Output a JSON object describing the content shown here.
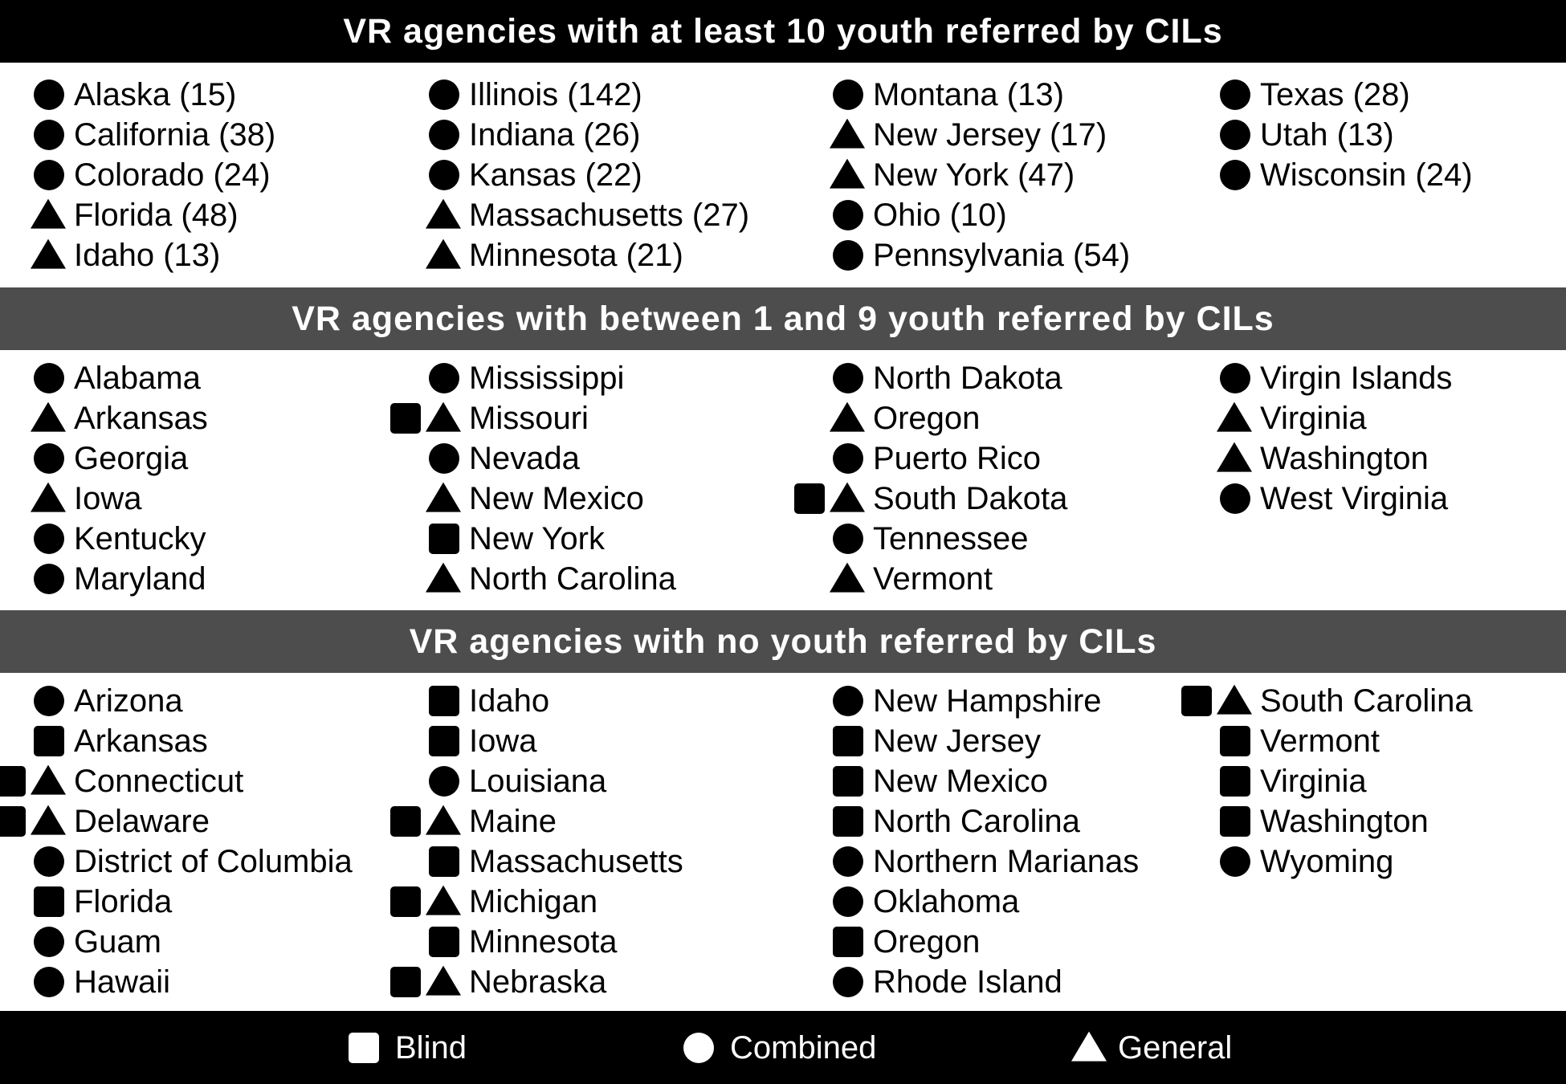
{
  "sections": [
    {
      "title": "VR agencies with at least 10 youth referred by CILs",
      "columns": [
        [
          {
            "label": "Alaska (15)",
            "icons": [
              "circle"
            ]
          },
          {
            "label": "California (38)",
            "icons": [
              "circle"
            ]
          },
          {
            "label": "Colorado (24)",
            "icons": [
              "circle"
            ]
          },
          {
            "label": "Florida (48)",
            "icons": [
              "triangle"
            ]
          },
          {
            "label": "Idaho (13)",
            "icons": [
              "triangle"
            ]
          }
        ],
        [
          {
            "label": "Illinois (142)",
            "icons": [
              "circle"
            ]
          },
          {
            "label": "Indiana (26)",
            "icons": [
              "circle"
            ]
          },
          {
            "label": "Kansas (22)",
            "icons": [
              "circle"
            ]
          },
          {
            "label": "Massachusetts (27)",
            "icons": [
              "triangle"
            ]
          },
          {
            "label": "Minnesota (21)",
            "icons": [
              "triangle"
            ]
          }
        ],
        [
          {
            "label": "Montana (13)",
            "icons": [
              "circle"
            ]
          },
          {
            "label": "New Jersey (17)",
            "icons": [
              "triangle"
            ]
          },
          {
            "label": "New York (47)",
            "icons": [
              "triangle"
            ]
          },
          {
            "label": "Ohio (10)",
            "icons": [
              "circle"
            ]
          },
          {
            "label": "Pennsylvania (54)",
            "icons": [
              "circle"
            ]
          }
        ],
        [
          {
            "label": "Texas (28)",
            "icons": [
              "circle"
            ]
          },
          {
            "label": "Utah (13)",
            "icons": [
              "circle"
            ]
          },
          {
            "label": "Wisconsin (24)",
            "icons": [
              "circle"
            ]
          }
        ]
      ]
    },
    {
      "title": "VR agencies with between 1 and 9 youth referred by CILs",
      "columns": [
        [
          {
            "label": "Alabama",
            "icons": [
              "circle"
            ]
          },
          {
            "label": "Arkansas",
            "icons": [
              "triangle"
            ]
          },
          {
            "label": "Georgia",
            "icons": [
              "circle"
            ]
          },
          {
            "label": "Iowa",
            "icons": [
              "triangle"
            ]
          },
          {
            "label": "Kentucky",
            "icons": [
              "circle"
            ]
          },
          {
            "label": "Maryland",
            "icons": [
              "circle"
            ]
          }
        ],
        [
          {
            "label": "Mississippi",
            "icons": [
              "circle"
            ]
          },
          {
            "label": "Missouri",
            "icons": [
              "square",
              "triangle"
            ]
          },
          {
            "label": "Nevada",
            "icons": [
              "circle"
            ]
          },
          {
            "label": "New Mexico",
            "icons": [
              "triangle"
            ]
          },
          {
            "label": "New York",
            "icons": [
              "square"
            ]
          },
          {
            "label": "North Carolina",
            "icons": [
              "triangle"
            ]
          }
        ],
        [
          {
            "label": "North Dakota",
            "icons": [
              "circle"
            ]
          },
          {
            "label": "Oregon",
            "icons": [
              "triangle"
            ]
          },
          {
            "label": "Puerto Rico",
            "icons": [
              "circle"
            ]
          },
          {
            "label": "South Dakota",
            "icons": [
              "square",
              "triangle"
            ]
          },
          {
            "label": "Tennessee",
            "icons": [
              "circle"
            ]
          },
          {
            "label": "Vermont",
            "icons": [
              "triangle"
            ]
          }
        ],
        [
          {
            "label": "Virgin Islands",
            "icons": [
              "circle"
            ]
          },
          {
            "label": "Virginia",
            "icons": [
              "triangle"
            ]
          },
          {
            "label": "Washington",
            "icons": [
              "triangle"
            ]
          },
          {
            "label": "West Virginia",
            "icons": [
              "circle"
            ]
          }
        ]
      ]
    },
    {
      "title": "VR agencies with no youth referred by CILs",
      "columns": [
        [
          {
            "label": "Arizona",
            "icons": [
              "circle"
            ]
          },
          {
            "label": "Arkansas",
            "icons": [
              "square"
            ]
          },
          {
            "label": "Connecticut",
            "icons": [
              "square",
              "triangle"
            ]
          },
          {
            "label": "Delaware",
            "icons": [
              "square",
              "triangle"
            ]
          },
          {
            "label": "District of Columbia",
            "icons": [
              "circle"
            ]
          },
          {
            "label": "Florida",
            "icons": [
              "square"
            ]
          },
          {
            "label": "Guam",
            "icons": [
              "circle"
            ]
          },
          {
            "label": "Hawaii",
            "icons": [
              "circle"
            ]
          }
        ],
        [
          {
            "label": "Idaho",
            "icons": [
              "square"
            ]
          },
          {
            "label": "Iowa",
            "icons": [
              "square"
            ]
          },
          {
            "label": "Louisiana",
            "icons": [
              "circle"
            ]
          },
          {
            "label": "Maine",
            "icons": [
              "square",
              "triangle"
            ]
          },
          {
            "label": "Massachusetts",
            "icons": [
              "square"
            ]
          },
          {
            "label": "Michigan",
            "icons": [
              "square",
              "triangle"
            ]
          },
          {
            "label": "Minnesota",
            "icons": [
              "square"
            ]
          },
          {
            "label": "Nebraska",
            "icons": [
              "square",
              "triangle"
            ]
          }
        ],
        [
          {
            "label": "New Hampshire",
            "icons": [
              "circle"
            ]
          },
          {
            "label": "New Jersey",
            "icons": [
              "square"
            ]
          },
          {
            "label": "New Mexico",
            "icons": [
              "square"
            ]
          },
          {
            "label": "North Carolina",
            "icons": [
              "square"
            ]
          },
          {
            "label": "Northern Marianas",
            "icons": [
              "circle"
            ]
          },
          {
            "label": "Oklahoma",
            "icons": [
              "circle"
            ]
          },
          {
            "label": "Oregon",
            "icons": [
              "square"
            ]
          },
          {
            "label": "Rhode Island",
            "icons": [
              "circle"
            ]
          }
        ],
        [
          {
            "label": "South Carolina",
            "icons": [
              "square",
              "triangle"
            ]
          },
          {
            "label": "Vermont",
            "icons": [
              "square"
            ]
          },
          {
            "label": "Virginia",
            "icons": [
              "square"
            ]
          },
          {
            "label": "Washington",
            "icons": [
              "square"
            ]
          },
          {
            "label": "Wyoming",
            "icons": [
              "circle"
            ]
          }
        ]
      ]
    }
  ],
  "legend": [
    {
      "label": "Blind",
      "icon": "square"
    },
    {
      "label": "Combined",
      "icon": "circle"
    },
    {
      "label": "General",
      "icon": "triangle"
    }
  ],
  "colors": {
    "header_primary": "#000000",
    "header_secondary": "#4d4d4d",
    "marker": "#000000",
    "legend_background": "#000000",
    "legend_text": "#ffffff"
  }
}
